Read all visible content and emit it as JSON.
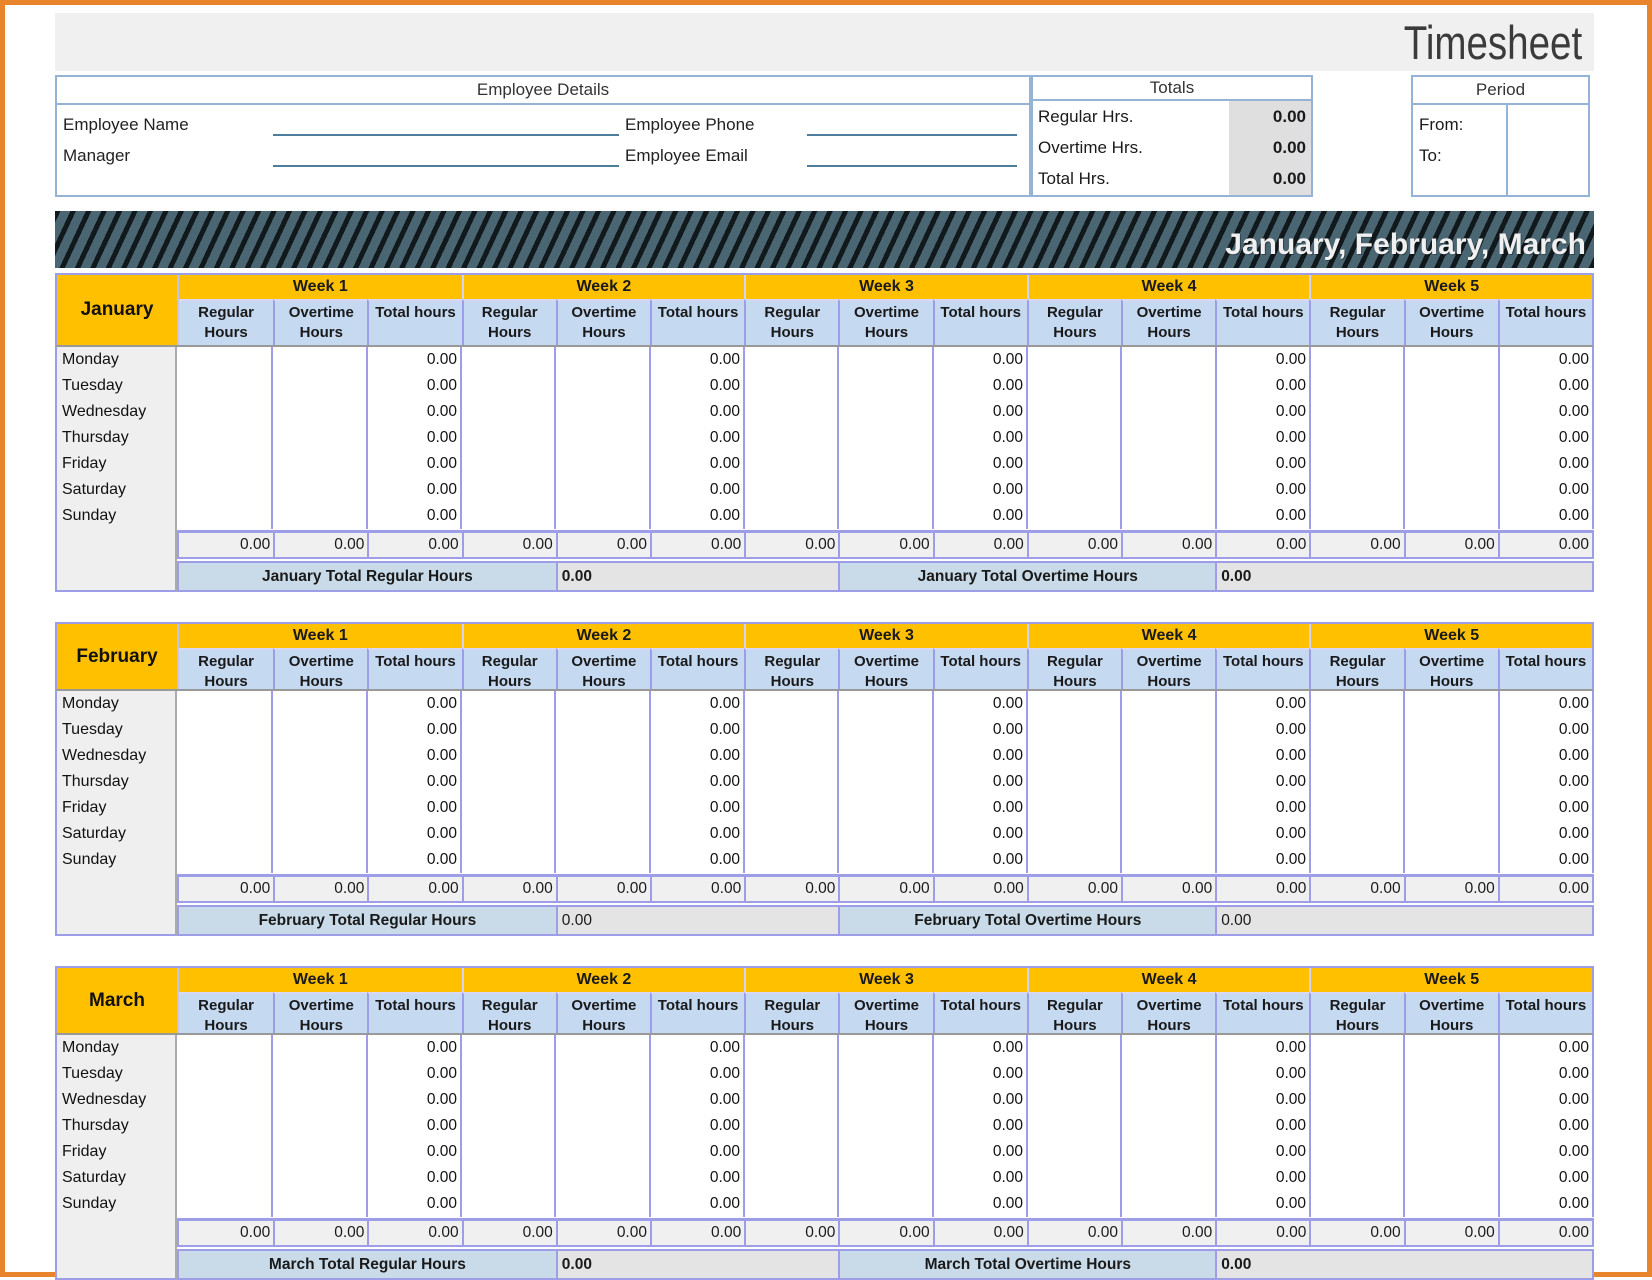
{
  "title": "Timesheet",
  "employee_details": {
    "header": "Employee Details",
    "rows": [
      {
        "left_label": "Employee Name",
        "left_value": "",
        "right_label": "Employee Phone",
        "right_value": ""
      },
      {
        "left_label": "Manager",
        "left_value": "",
        "right_label": "Employee Email",
        "right_value": ""
      }
    ]
  },
  "totals_box": {
    "header": "Totals",
    "rows": [
      {
        "label": "Regular Hrs.",
        "value": "0.00"
      },
      {
        "label": "Overtime Hrs.",
        "value": "0.00"
      },
      {
        "label": "Total Hrs.",
        "value": "0.00"
      }
    ]
  },
  "period_box": {
    "header": "Period",
    "rows": [
      {
        "label": "From:",
        "value": ""
      },
      {
        "label": "To:",
        "value": ""
      }
    ]
  },
  "banner": {
    "title": "January, February, March"
  },
  "table_template": {
    "weeks": [
      "Week 1",
      "Week 2",
      "Week 3",
      "Week 4",
      "Week 5"
    ],
    "columns": [
      "Regular Hours",
      "Overtime Hours",
      "Total hours"
    ],
    "days": [
      "Monday",
      "Tuesday",
      "Wednesday",
      "Thursday",
      "Friday",
      "Saturday",
      "Sunday"
    ],
    "day_total_value": "0.00",
    "subtotal_value": "0.00"
  },
  "months": [
    {
      "name": "January",
      "clipped_header": false,
      "totals_bold": true,
      "total_regular_label": "January Total Regular Hours",
      "total_regular_value": "0.00",
      "total_overtime_label": "January Total Overtime Hours",
      "total_overtime_value": "0.00"
    },
    {
      "name": "February",
      "clipped_header": true,
      "totals_bold": false,
      "total_regular_label": "February Total Regular Hours",
      "total_regular_value": "0.00",
      "total_overtime_label": "February Total Overtime Hours",
      "total_overtime_value": "0.00"
    },
    {
      "name": "March",
      "clipped_header": true,
      "totals_bold": true,
      "total_regular_label": "March Total Regular Hours",
      "total_regular_value": "0.00",
      "total_overtime_label": "March Total Overtime Hours",
      "total_overtime_value": "0.00"
    }
  ],
  "colors": {
    "page_border": "#E8842C",
    "accent_yellow": "#FFC000",
    "header_blue": "#C5D9F1",
    "grid_border": "#9E9EE8",
    "banner_bg": "#4B6673",
    "total_label_blue": "#C9DBE8"
  }
}
